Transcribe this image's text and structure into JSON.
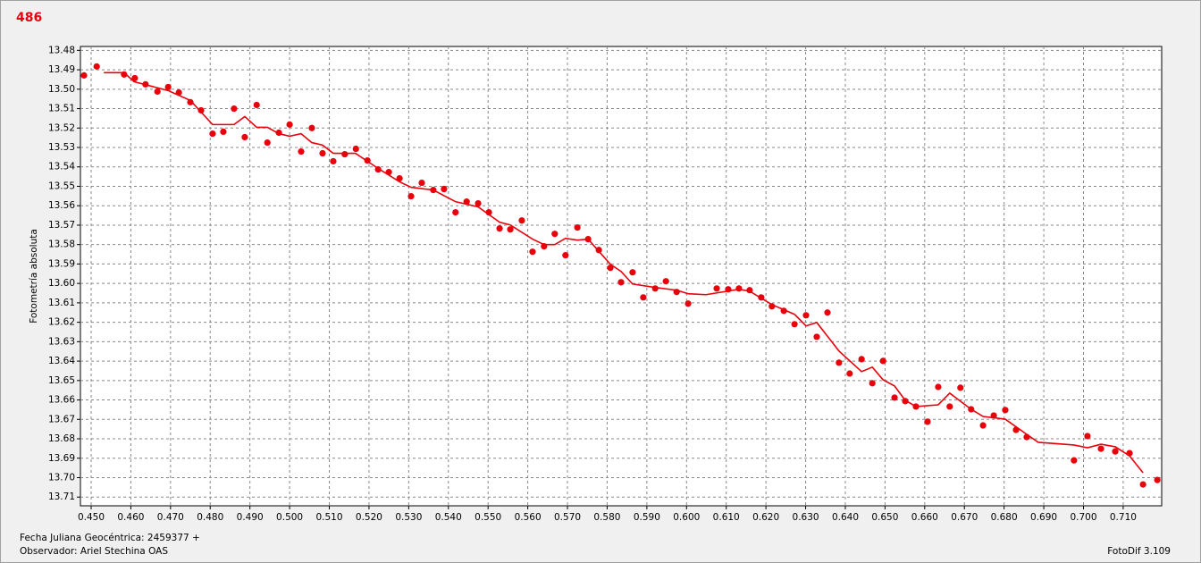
{
  "chart_data": {
    "type": "scatter",
    "title": "486",
    "ylabel": "Fotometría absoluta",
    "annotations": [
      "Fecha Juliana Geocéntrica: 2459377 +",
      "Observador: Ariel Stechina OAS",
      "FotoDif 3.109"
    ],
    "grid": true,
    "xlim": [
      0.4473,
      0.7197
    ],
    "ylim": [
      13.7145,
      13.478
    ],
    "xticks": [
      {
        "value": 0.45,
        "label": "0.450"
      },
      {
        "value": 0.46,
        "label": "0.460"
      },
      {
        "value": 0.47,
        "label": "0.470"
      },
      {
        "value": 0.48,
        "label": "0.480"
      },
      {
        "value": 0.49,
        "label": "0.490"
      },
      {
        "value": 0.5,
        "label": "0.500"
      },
      {
        "value": 0.51,
        "label": "0.510"
      },
      {
        "value": 0.52,
        "label": "0.520"
      },
      {
        "value": 0.53,
        "label": "0.530"
      },
      {
        "value": 0.54,
        "label": "0.540"
      },
      {
        "value": 0.55,
        "label": "0.550"
      },
      {
        "value": 0.56,
        "label": "0.560"
      },
      {
        "value": 0.57,
        "label": "0.570"
      },
      {
        "value": 0.58,
        "label": "0.580"
      },
      {
        "value": 0.59,
        "label": "0.590"
      },
      {
        "value": 0.6,
        "label": "0.600"
      },
      {
        "value": 0.61,
        "label": "0.610"
      },
      {
        "value": 0.62,
        "label": "0.620"
      },
      {
        "value": 0.63,
        "label": "0.630"
      },
      {
        "value": 0.64,
        "label": "0.640"
      },
      {
        "value": 0.65,
        "label": "0.650"
      },
      {
        "value": 0.66,
        "label": "0.660"
      },
      {
        "value": 0.67,
        "label": "0.670"
      },
      {
        "value": 0.68,
        "label": "0.680"
      },
      {
        "value": 0.69,
        "label": "0.690"
      },
      {
        "value": 0.7,
        "label": "0.700"
      },
      {
        "value": 0.71,
        "label": "0.710"
      }
    ],
    "yticks": [
      13.48,
      13.49,
      {
        "value": 13.5,
        "label": "13.50"
      },
      13.51,
      13.52,
      13.53,
      13.54,
      13.55,
      13.56,
      13.57,
      13.58,
      13.59,
      {
        "value": 13.6,
        "label": "13.60"
      },
      13.61,
      13.62,
      13.63,
      13.64,
      13.65,
      13.66,
      13.67,
      13.68,
      13.69,
      {
        "value": 13.7,
        "label": "13.70"
      },
      13.71
    ],
    "series": [
      {
        "type": "scatter",
        "color": "#e8000b",
        "x": [
          0.4482,
          0.4514,
          0.4583,
          0.461,
          0.4637,
          0.4667,
          0.4694,
          0.4721,
          0.475,
          0.4777,
          0.4806,
          0.4833,
          0.486,
          0.4887,
          0.4917,
          0.4944,
          0.4973,
          0.5,
          0.5029,
          0.5056,
          0.5083,
          0.511,
          0.5139,
          0.5167,
          0.5196,
          0.5223,
          0.525,
          0.5277,
          0.5306,
          0.5333,
          0.5362,
          0.5389,
          0.5418,
          0.5446,
          0.5475,
          0.5502,
          0.5529,
          0.5556,
          0.5585,
          0.5612,
          0.5641,
          0.5668,
          0.5695,
          0.5725,
          0.5752,
          0.5779,
          0.5808,
          0.5835,
          0.5864,
          0.5891,
          0.5921,
          0.5948,
          0.5975,
          0.6004,
          0.6076,
          0.6105,
          0.6132,
          0.6159,
          0.6188,
          0.6215,
          0.6245,
          0.6272,
          0.6301,
          0.6328,
          0.6355,
          0.6384,
          0.6411,
          0.6441,
          0.6468,
          0.6495,
          0.6524,
          0.6551,
          0.6578,
          0.6607,
          0.6634,
          0.6663,
          0.669,
          0.6717,
          0.6747,
          0.6774,
          0.6803,
          0.683,
          0.6857,
          0.6976,
          0.701,
          0.7044,
          0.708,
          0.7116,
          0.715,
          0.7186
        ],
        "values": [
          13.4929,
          13.4883,
          13.4924,
          13.4943,
          13.4975,
          13.5012,
          13.4989,
          13.5017,
          13.5067,
          13.5109,
          13.5229,
          13.5219,
          13.51,
          13.5247,
          13.5081,
          13.5275,
          13.5224,
          13.5182,
          13.5321,
          13.52,
          13.533,
          13.5371,
          13.5335,
          13.5307,
          13.5367,
          13.5413,
          13.5427,
          13.5459,
          13.5551,
          13.5482,
          13.5519,
          13.5514,
          13.5634,
          13.5579,
          13.5588,
          13.5634,
          13.5717,
          13.5722,
          13.5676,
          13.5837,
          13.5809,
          13.5745,
          13.5855,
          13.5712,
          13.5772,
          13.5828,
          13.592,
          13.5994,
          13.5943,
          13.6072,
          13.6026,
          13.5989,
          13.6044,
          13.6104,
          13.6026,
          13.603,
          13.6026,
          13.6035,
          13.6072,
          13.6118,
          13.6141,
          13.621,
          13.6164,
          13.6275,
          13.615,
          13.6408,
          13.6464,
          13.639,
          13.6514,
          13.6399,
          13.6588,
          13.6606,
          13.6634,
          13.6712,
          13.6533,
          13.6634,
          13.6537,
          13.6648,
          13.6731,
          13.668,
          13.6652,
          13.6754,
          13.6791,
          13.6911,
          13.6786,
          13.6851,
          13.6865,
          13.6874,
          13.7035,
          13.7012
        ]
      },
      {
        "type": "line",
        "color": "#e8000b",
        "x": [
          0.4532,
          0.4583,
          0.4608,
          0.4694,
          0.475,
          0.4806,
          0.486,
          0.4887,
          0.4917,
          0.4944,
          0.4973,
          0.5,
          0.5029,
          0.5056,
          0.5083,
          0.511,
          0.5166,
          0.5223,
          0.5277,
          0.5306,
          0.5362,
          0.5418,
          0.5475,
          0.5529,
          0.5556,
          0.5612,
          0.5641,
          0.5668,
          0.5695,
          0.5725,
          0.5752,
          0.5808,
          0.5835,
          0.5864,
          0.5921,
          0.5975,
          0.6004,
          0.6049,
          0.6132,
          0.6159,
          0.6215,
          0.6272,
          0.6301,
          0.6328,
          0.6384,
          0.6441,
          0.6468,
          0.6495,
          0.6524,
          0.6551,
          0.6578,
          0.6634,
          0.6663,
          0.6717,
          0.6747,
          0.6803,
          0.6857,
          0.6886,
          0.6976,
          0.701,
          0.7044,
          0.708,
          0.7116,
          0.715
        ],
        "values": [
          13.4915,
          13.4915,
          13.4961,
          13.5007,
          13.5058,
          13.5182,
          13.5182,
          13.5141,
          13.5196,
          13.5196,
          13.5229,
          13.5242,
          13.5229,
          13.5275,
          13.5288,
          13.533,
          13.533,
          13.5408,
          13.5477,
          13.5505,
          13.5519,
          13.5579,
          13.5606,
          13.5685,
          13.5699,
          13.5772,
          13.58,
          13.58,
          13.5768,
          13.5777,
          13.5772,
          13.5901,
          13.5938,
          13.6003,
          13.6021,
          13.6035,
          13.6053,
          13.6058,
          13.603,
          13.604,
          13.6109,
          13.6159,
          13.6219,
          13.6201,
          13.6348,
          13.6454,
          13.6431,
          13.6496,
          13.6528,
          13.6602,
          13.6634,
          13.6625,
          13.6565,
          13.6648,
          13.6685,
          13.6699,
          13.6777,
          13.6818,
          13.6832,
          13.6846,
          13.6828,
          13.6841,
          13.6888,
          13.6975
        ]
      }
    ]
  }
}
